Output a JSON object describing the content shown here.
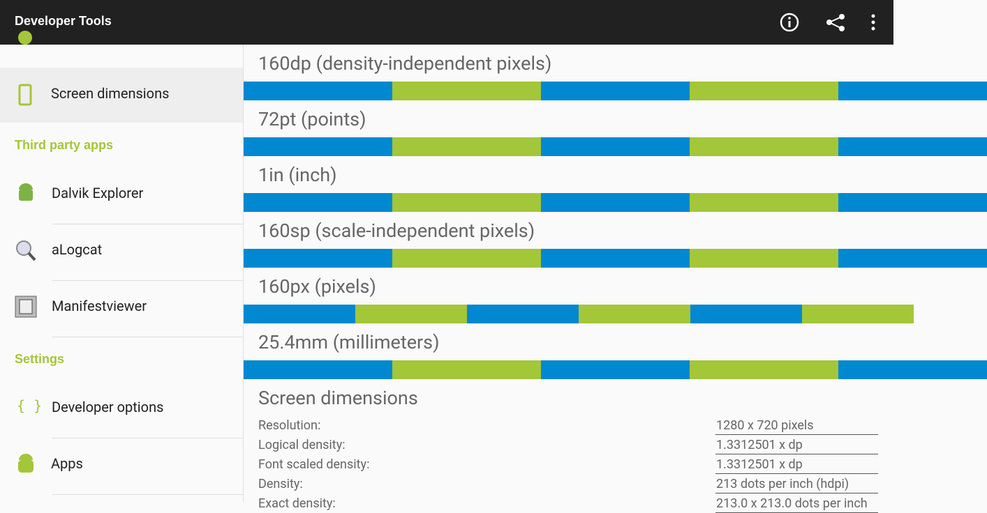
{
  "app_bar": {
    "title": "Developer Tools"
  },
  "sidebar": {
    "selected": "Screen dimensions",
    "sections": [
      {
        "title": "Third party apps",
        "items": [
          "Dalvik Explorer",
          "aLogcat",
          "Manifestviewer"
        ]
      },
      {
        "title": "Settings",
        "items": [
          "Developer options",
          "Apps"
        ]
      }
    ]
  },
  "rulers": [
    "160dp (density-independent pixels)",
    "72pt (points)",
    "1in (inch)",
    "160sp (scale-independent pixels)",
    "160px (pixels)",
    "25.4mm (millimeters)"
  ],
  "screen_dimensions": {
    "title": "Screen dimensions",
    "rows": [
      [
        "Resolution:",
        "1280 x 720 pixels"
      ],
      [
        "Logical density:",
        "1.3312501 x dp"
      ],
      [
        "Font scaled density:",
        "1.3312501 x dp"
      ],
      [
        "Density:",
        "213 dots per inch (hdpi)"
      ],
      [
        "Exact density:",
        "213.0 x 213.0 dots per inch"
      ]
    ]
  }
}
